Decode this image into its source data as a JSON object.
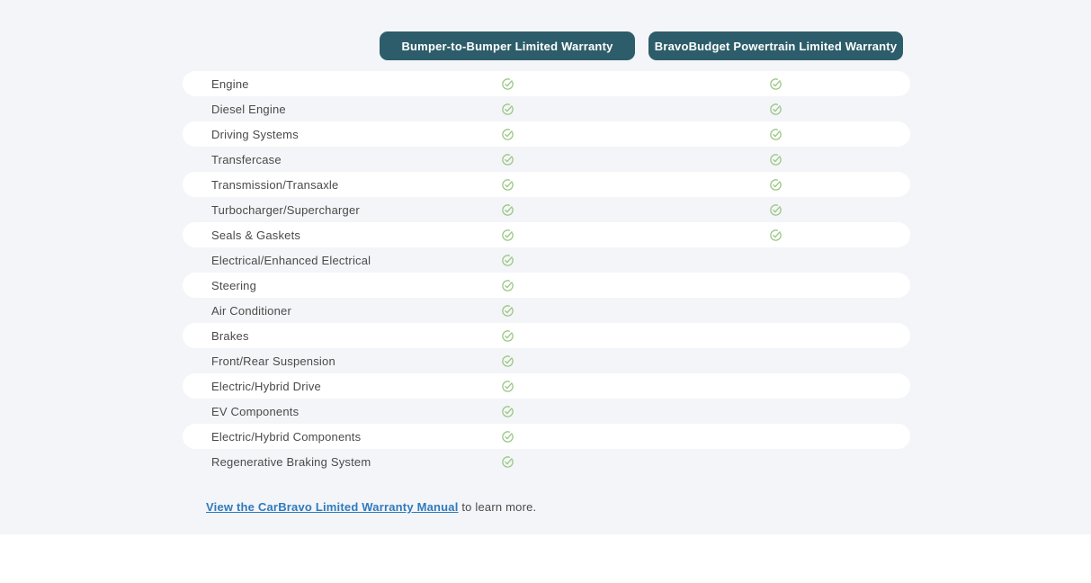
{
  "theme": {
    "page_background": "#f4f5f8",
    "row_background": "#ffffff",
    "pill_teal": "#2d5d6a",
    "check_green": "#9ac784",
    "link_blue": "#2e7bbd",
    "text_gray": "#4a4a4a"
  },
  "header": {
    "columns": [
      {
        "label": "Bumper-to-Bumper Limited Warranty"
      },
      {
        "label": "BravoBudget Powertrain Limited Warranty"
      }
    ]
  },
  "table": {
    "check_icon": "check-circle-icon",
    "rows": [
      {
        "label": "Engine",
        "bumper_to_bumper": true,
        "powertrain": true
      },
      {
        "label": "Diesel Engine",
        "bumper_to_bumper": true,
        "powertrain": true
      },
      {
        "label": "Driving Systems",
        "bumper_to_bumper": true,
        "powertrain": true
      },
      {
        "label": "Transfercase",
        "bumper_to_bumper": true,
        "powertrain": true
      },
      {
        "label": "Transmission/Transaxle",
        "bumper_to_bumper": true,
        "powertrain": true
      },
      {
        "label": "Turbocharger/Supercharger",
        "bumper_to_bumper": true,
        "powertrain": true
      },
      {
        "label": "Seals & Gaskets",
        "bumper_to_bumper": true,
        "powertrain": true
      },
      {
        "label": "Electrical/Enhanced Electrical",
        "bumper_to_bumper": true,
        "powertrain": false
      },
      {
        "label": "Steering",
        "bumper_to_bumper": true,
        "powertrain": false
      },
      {
        "label": "Air Conditioner",
        "bumper_to_bumper": true,
        "powertrain": false
      },
      {
        "label": "Brakes",
        "bumper_to_bumper": true,
        "powertrain": false
      },
      {
        "label": "Front/Rear Suspension",
        "bumper_to_bumper": true,
        "powertrain": false
      },
      {
        "label": "Electric/Hybrid Drive",
        "bumper_to_bumper": true,
        "powertrain": false
      },
      {
        "label": "EV Components",
        "bumper_to_bumper": true,
        "powertrain": false
      },
      {
        "label": "Electric/Hybrid Components",
        "bumper_to_bumper": true,
        "powertrain": false
      },
      {
        "label": "Regenerative Braking System",
        "bumper_to_bumper": true,
        "powertrain": false
      }
    ]
  },
  "footer": {
    "link_text": "View the CarBravo Limited Warranty Manual",
    "suffix_text": " to learn more."
  }
}
